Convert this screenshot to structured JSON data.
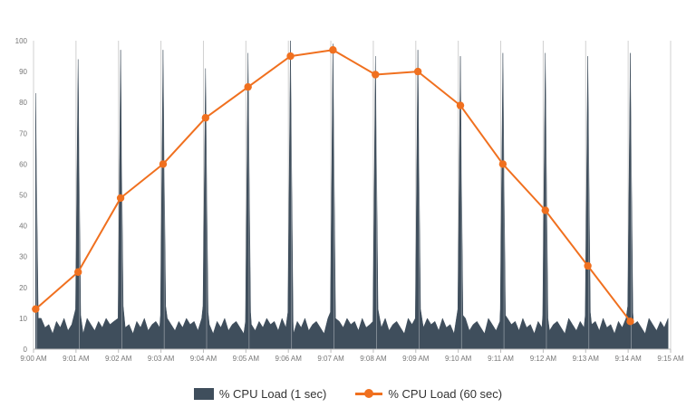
{
  "chart_data": {
    "type": "area",
    "x_ticks": [
      "9:00 AM",
      "9:01 AM",
      "9:02 AM",
      "9:03 AM",
      "9:04 AM",
      "9:05 AM",
      "9:06 AM",
      "9:07 AM",
      "9:08 AM",
      "9:09 AM",
      "9:10 AM",
      "9:11 AM",
      "9:12 AM",
      "9:13 AM",
      "9:14 AM",
      "9:15 AM"
    ],
    "y_ticks": [
      0,
      10,
      20,
      30,
      40,
      50,
      60,
      70,
      80,
      90,
      100
    ],
    "ylim": [
      0,
      100
    ],
    "xlim_minutes": [
      0,
      15
    ],
    "grid": {
      "vertical": true,
      "horizontal": false
    },
    "legend_position": "bottom-center",
    "series": [
      {
        "name": "% CPU Load (1 sec)",
        "type": "area",
        "color": "#3f4e5c",
        "baseline": [
          9,
          6,
          10,
          7,
          8,
          5,
          9,
          7,
          10,
          6,
          8,
          9,
          7,
          5,
          10,
          8,
          6,
          9,
          7,
          10,
          8
        ],
        "spikes": [
          {
            "minute": 0.05,
            "value": 83
          },
          {
            "minute": 1.05,
            "value": 94
          },
          {
            "minute": 2.05,
            "value": 97
          },
          {
            "minute": 3.05,
            "value": 97
          },
          {
            "minute": 4.05,
            "value": 91
          },
          {
            "minute": 5.05,
            "value": 96
          },
          {
            "minute": 6.05,
            "value": 100
          },
          {
            "minute": 7.05,
            "value": 99
          },
          {
            "minute": 8.05,
            "value": 95
          },
          {
            "minute": 9.05,
            "value": 97
          },
          {
            "minute": 10.05,
            "value": 95
          },
          {
            "minute": 11.05,
            "value": 96
          },
          {
            "minute": 12.05,
            "value": 96
          },
          {
            "minute": 13.05,
            "value": 95
          },
          {
            "minute": 14.05,
            "value": 96
          }
        ]
      },
      {
        "name": "% CPU Load (60 sec)",
        "type": "line",
        "color": "#f0701f",
        "x": [
          "9:00 AM",
          "9:01 AM",
          "9:02 AM",
          "9:03 AM",
          "9:04 AM",
          "9:05 AM",
          "9:06 AM",
          "9:07 AM",
          "9:08 AM",
          "9:09 AM",
          "9:10 AM",
          "9:11 AM",
          "9:12 AM",
          "9:13 AM",
          "9:14 AM"
        ],
        "values": [
          13,
          25,
          49,
          60,
          75,
          85,
          95,
          97,
          89,
          90,
          79,
          60,
          45,
          27,
          9
        ]
      }
    ]
  }
}
